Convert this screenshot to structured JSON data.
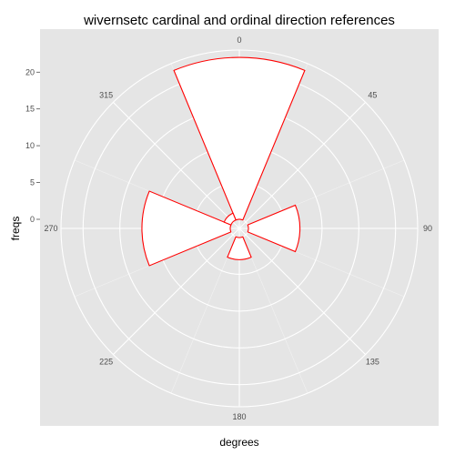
{
  "chart_data": {
    "type": "polar-bar",
    "title": "wivernsetc cardinal and ordinal direction references",
    "xlabel": "degrees",
    "ylabel": "freqs",
    "r_ticks": [
      0,
      5,
      10,
      15,
      20
    ],
    "r_max": 23,
    "angle_ticks": [
      "0",
      "45",
      "90",
      "135",
      "180",
      "225",
      "270",
      "315"
    ],
    "bins": [
      {
        "center_deg": 0,
        "width_deg": 45,
        "value": 22
      },
      {
        "center_deg": 90,
        "width_deg": 45,
        "value": 7
      },
      {
        "center_deg": 180,
        "width_deg": 45,
        "value": 3
      },
      {
        "center_deg": 270,
        "width_deg": 45,
        "value": 12
      },
      {
        "center_deg": 315,
        "width_deg": 45,
        "value": 1
      }
    ],
    "bar_fill": "#ffffff",
    "bar_outline": "#ff0000",
    "panel_background": "#e5e5e5",
    "grid_color": "#ffffff",
    "grid": true
  }
}
